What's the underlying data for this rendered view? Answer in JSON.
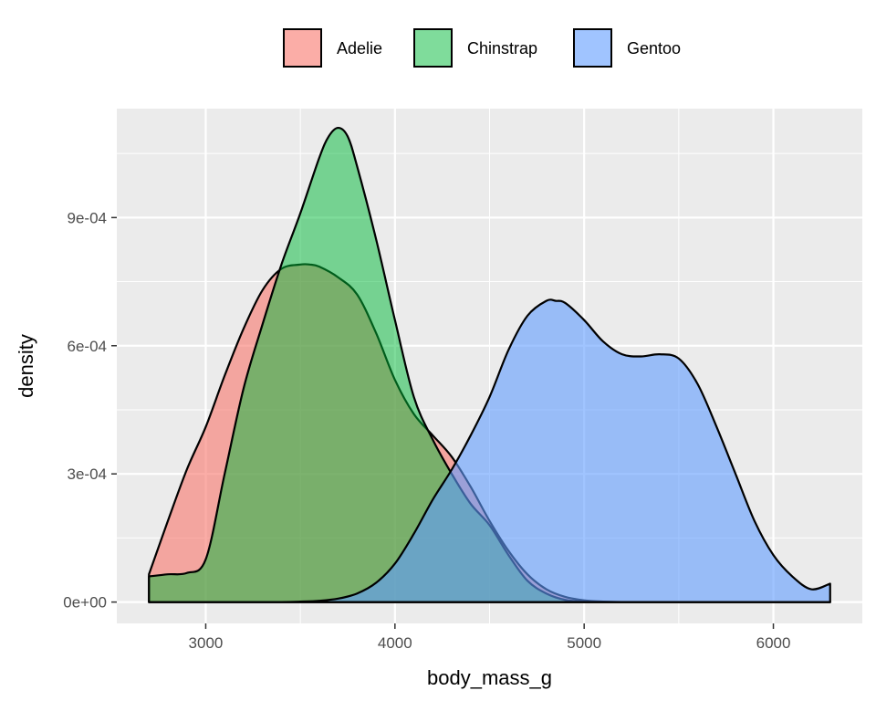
{
  "chart_data": {
    "type": "area",
    "subtype": "density",
    "xlabel": "body_mass_g",
    "ylabel": "density",
    "xlim": [
      2530,
      6470
    ],
    "ylim": [
      -5e-05,
      0.001155
    ],
    "x_ticks": [
      3000,
      4000,
      5000,
      6000
    ],
    "x_tick_labels": [
      "3000",
      "4000",
      "5000",
      "6000"
    ],
    "y_ticks": [
      0,
      0.0003,
      0.0006,
      0.0009
    ],
    "y_tick_labels": [
      "0e+00",
      "3e-04",
      "6e-04",
      "9e-04"
    ],
    "grid": true,
    "legend_position": "top",
    "series": [
      {
        "name": "Adelie",
        "color": "#F8766D",
        "fill_opacity": 0.6,
        "x": [
          2700,
          2800,
          2900,
          3000,
          3100,
          3200,
          3300,
          3400,
          3500,
          3550,
          3600,
          3700,
          3800,
          3900,
          4000,
          4100,
          4200,
          4300,
          4400,
          4500,
          4600,
          4700,
          4800,
          4900,
          5000,
          5100,
          5200,
          5400,
          5700,
          6300
        ],
        "y": [
          6.5e-05,
          0.00019,
          0.00031,
          0.00041,
          0.00053,
          0.00064,
          0.00073,
          0.00078,
          0.00079,
          0.00079,
          0.000785,
          0.00076,
          0.00072,
          0.00063,
          0.00052,
          0.00044,
          0.00039,
          0.00034,
          0.00027,
          0.00019,
          0.00012,
          6.5e-05,
          3e-05,
          1.2e-05,
          4e-06,
          1e-06,
          0,
          0,
          0,
          0
        ]
      },
      {
        "name": "Chinstrap",
        "color": "#00BA38",
        "fill_opacity": 0.5,
        "x": [
          2700,
          2800,
          2900,
          3000,
          3100,
          3200,
          3300,
          3400,
          3500,
          3600,
          3650,
          3700,
          3750,
          3800,
          3900,
          4000,
          4100,
          4200,
          4300,
          4400,
          4500,
          4600,
          4700,
          4800,
          4900,
          5000,
          5200,
          5600,
          6300
        ],
        "y": [
          6e-05,
          6.5e-05,
          6.8e-05,
          0.0001,
          0.0003,
          0.0005,
          0.00065,
          0.00079,
          0.00091,
          0.00104,
          0.00109,
          0.00111,
          0.00109,
          0.00102,
          0.00085,
          0.00066,
          0.00048,
          0.00038,
          0.0003,
          0.00023,
          0.00018,
          0.00011,
          5e-05,
          2e-05,
          5e-06,
          1e-06,
          0,
          0,
          0
        ]
      },
      {
        "name": "Gentoo",
        "color": "#619CFF",
        "fill_opacity": 0.6,
        "x": [
          2700,
          3000,
          3200,
          3400,
          3500,
          3600,
          3700,
          3800,
          3900,
          4000,
          4100,
          4200,
          4300,
          4400,
          4500,
          4600,
          4700,
          4800,
          4850,
          4900,
          5000,
          5100,
          5200,
          5300,
          5400,
          5500,
          5600,
          5700,
          5800,
          5900,
          6000,
          6100,
          6200,
          6300
        ],
        "y": [
          0,
          0,
          0,
          0,
          1e-06,
          3e-06,
          8e-06,
          2e-05,
          4.5e-05,
          9e-05,
          0.00016,
          0.00024,
          0.00031,
          0.00039,
          0.00048,
          0.00059,
          0.00067,
          0.000705,
          0.000705,
          0.0007,
          0.00066,
          0.00061,
          0.00058,
          0.000575,
          0.00058,
          0.00057,
          0.00051,
          0.00041,
          0.0003,
          0.00019,
          0.00011,
          6e-05,
          3e-05,
          4.3e-05
        ]
      }
    ]
  }
}
